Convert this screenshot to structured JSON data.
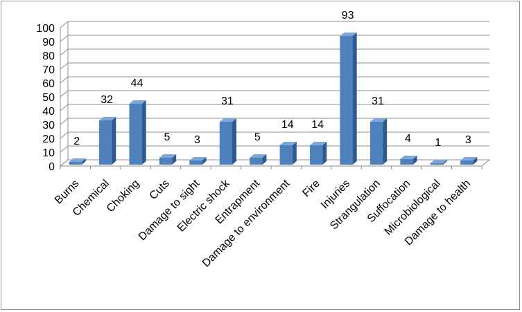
{
  "chart_data": {
    "type": "bar",
    "title": "",
    "xlabel": "",
    "ylabel": "",
    "ylim": [
      0,
      100
    ],
    "ytick_step": 10,
    "grid": true,
    "legend": "none",
    "three_d": true,
    "bar_color": "#4f81bd",
    "bar_top_color": "#7fa6d8",
    "bar_side_color": "#2e5a92",
    "gridline_color": "#8c8c8c",
    "categories": [
      "Burns",
      "Chemical",
      "Choking",
      "Cuts",
      "Damage to sight",
      "Electric shock",
      "Entrapment",
      "Damage to environment",
      "Fire",
      "Injuries",
      "Strangulation",
      "Suffocation",
      "Microbiological",
      "Damage to health"
    ],
    "values": [
      2,
      32,
      44,
      5,
      3,
      31,
      5,
      14,
      14,
      93,
      31,
      4,
      1,
      3
    ]
  }
}
